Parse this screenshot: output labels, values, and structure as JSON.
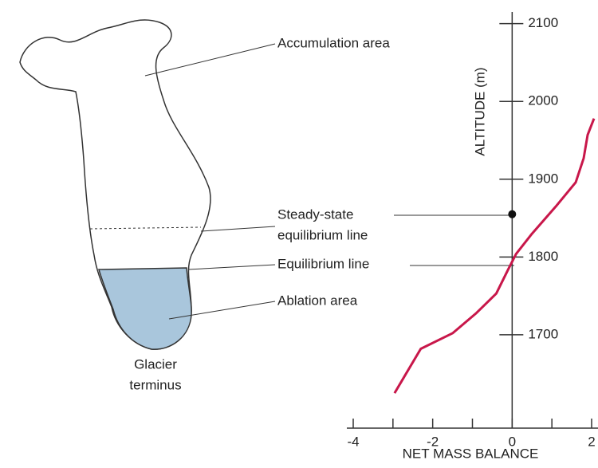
{
  "labels": {
    "accumulation": "Accumulation area",
    "steady_state": [
      "Steady-state",
      "equilibrium line"
    ],
    "equilibrium": "Equilibrium line",
    "ablation": "Ablation area",
    "terminus": [
      "Glacier",
      "terminus"
    ]
  },
  "chart_data": {
    "type": "line",
    "xlabel": "NET MASS BALANCE",
    "ylabel": "ALTITUDE (m)",
    "xlim": [
      -4,
      2
    ],
    "xticks": [
      -4,
      -2,
      0,
      2
    ],
    "xminor": [
      -3,
      -1,
      1
    ],
    "ylim": [
      1580,
      2115
    ],
    "yticks": [
      1700,
      1800,
      1900,
      2000,
      2100
    ],
    "series": [
      {
        "color": "#c8174a",
        "x": [
          -2.96,
          -2.3,
          -1.5,
          -0.9,
          -0.4,
          -0.1,
          0.1,
          0.5,
          1.1,
          1.6,
          1.8,
          1.9,
          2.06
        ],
        "values": [
          1625,
          1682,
          1702,
          1728,
          1753,
          1784,
          1804,
          1830,
          1865,
          1896,
          1927,
          1957,
          1978
        ]
      }
    ],
    "steady_state_point": {
      "x": 0,
      "y": 1855
    }
  }
}
